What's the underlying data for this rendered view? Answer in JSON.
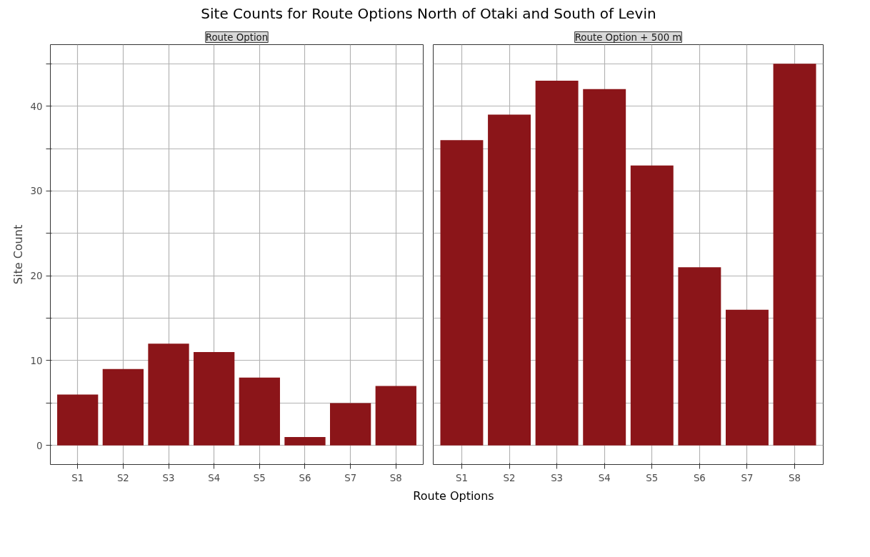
{
  "chart_data": [
    {
      "type": "bar",
      "title": "Site Counts for Route Options North of Otaki and South of Levin",
      "subtitle": "Route Option",
      "xlabel": "Route Options",
      "ylabel": "Site Count",
      "categories": [
        "S1",
        "S2",
        "S3",
        "S4",
        "S5",
        "S6",
        "S7",
        "S8"
      ],
      "values": [
        6,
        9,
        12,
        11,
        8,
        1,
        5,
        7
      ],
      "color": "#8b1519",
      "ylim": [
        -2.25,
        47.25
      ],
      "yticks": [
        0,
        {
          "value": 5,
          "label": null
        },
        10,
        {
          "value": 15,
          "label": null
        },
        20,
        {
          "value": 25,
          "label": null
        },
        30,
        {
          "value": 35,
          "label": null
        },
        40,
        {
          "value": 45,
          "label": null
        }
      ],
      "grid": true
    },
    {
      "type": "bar",
      "subtitle": "Route Option + 500 m",
      "categories": [
        "S1",
        "S2",
        "S3",
        "S4",
        "S5",
        "S6",
        "S7",
        "S8"
      ],
      "values": [
        36,
        39,
        43,
        42,
        33,
        21,
        16,
        45
      ],
      "color": "#8b1519",
      "ylim": [
        -2.25,
        47.25
      ],
      "yticks": [
        0,
        {
          "value": 5,
          "label": null
        },
        10,
        {
          "value": 15,
          "label": null
        },
        20,
        {
          "value": 25,
          "label": null
        },
        30,
        {
          "value": 35,
          "label": null
        },
        40,
        {
          "value": 45,
          "label": null
        }
      ],
      "grid": true,
      "tick_labels": "x"
    }
  ]
}
